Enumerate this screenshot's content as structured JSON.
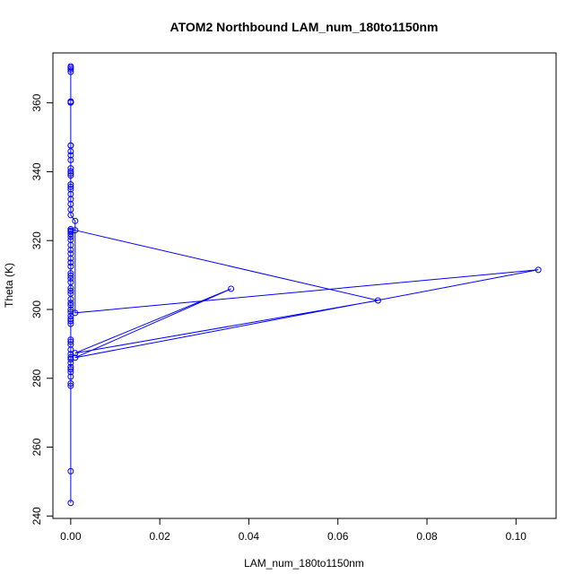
{
  "chart_data": {
    "type": "line",
    "title": "ATOM2 Northbound LAM_num_180to1150nm",
    "xlabel": "LAM_num_180to1150nm",
    "ylabel": "Theta (K)",
    "xlim": [
      -0.004,
      0.109
    ],
    "ylim": [
      239.3,
      374.5
    ],
    "xticks": [
      0.0,
      0.02,
      0.04,
      0.06,
      0.08,
      0.1
    ],
    "xtick_labels": [
      "0.00",
      "0.02",
      "0.04",
      "0.06",
      "0.08",
      "0.10"
    ],
    "yticks": [
      240,
      260,
      280,
      300,
      320,
      340,
      360
    ],
    "ytick_labels": [
      "240",
      "260",
      "280",
      "300",
      "320",
      "340",
      "360"
    ],
    "grid": false,
    "legend": "none",
    "color": "#0000ff",
    "series": [
      {
        "x": [
          0,
          0,
          0,
          0,
          0,
          0,
          0,
          0,
          0,
          0,
          0,
          0,
          0,
          0,
          0,
          0,
          0,
          0,
          0,
          0,
          0,
          0,
          0,
          0,
          0,
          0,
          0,
          0,
          0,
          0,
          0,
          0,
          0,
          0,
          0,
          0,
          0,
          0,
          0,
          0,
          0,
          0,
          0,
          0,
          0.001,
          0.069,
          0.001,
          0.036,
          0.001,
          0.105,
          0.001,
          0.001,
          0,
          0,
          0,
          0,
          0,
          0,
          0,
          0,
          0,
          0,
          0,
          0,
          0,
          0,
          0,
          0,
          0,
          0,
          0,
          0,
          0,
          0,
          0,
          0
        ],
        "y": [
          243.8,
          253.0,
          277.8,
          278.5,
          280.5,
          281.8,
          282.6,
          283.3,
          284.5,
          285.5,
          286.1,
          287.0,
          288.3,
          289.8,
          290.6,
          291.2,
          295.8,
          296.6,
          297.3,
          298.1,
          299.2,
          300.0,
          301.2,
          301.9,
          303.0,
          304.6,
          305.4,
          306.2,
          307.9,
          309.0,
          309.8,
          310.5,
          312.5,
          313.6,
          314.8,
          316.2,
          317.3,
          318.7,
          320.2,
          321.1,
          321.9,
          322.6,
          322.9,
          323.3,
          323.0,
          302.6,
          287.3,
          306.0,
          286.0,
          311.5,
          299.0,
          325.7,
          327.4,
          329.0,
          330.6,
          332.0,
          333.5,
          334.9,
          335.6,
          336.3,
          338.9,
          339.5,
          340.1,
          341.0,
          343.4,
          344.8,
          345.9,
          347.6,
          360.1,
          360.4,
          369.0,
          369.7,
          370.2,
          370.6,
          360.1,
          347.6
        ]
      }
    ]
  }
}
